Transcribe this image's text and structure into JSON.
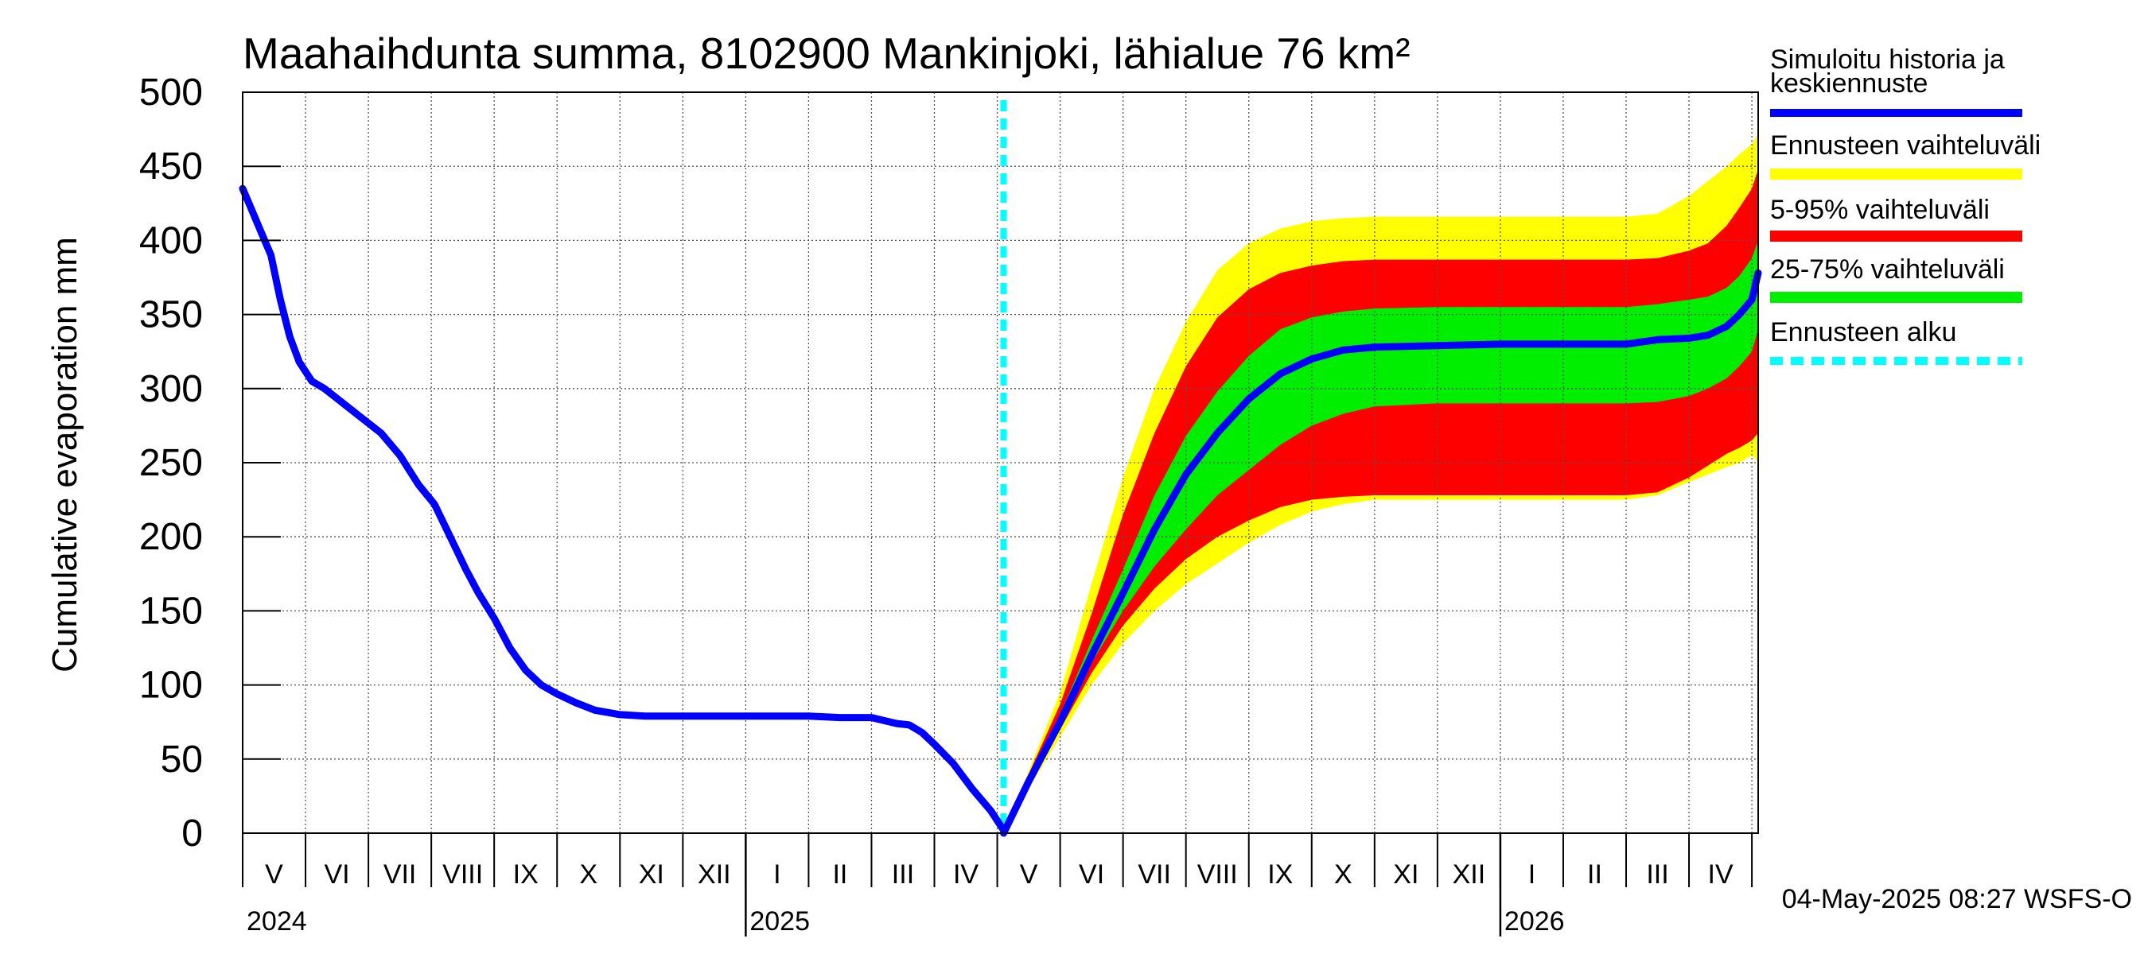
{
  "chart_data": {
    "type": "area",
    "title": "Maahaihdunta summa, 8102900 Mankinjoki, lähialue 76 km²",
    "ylabel": "Cumulative evaporation   mm",
    "xlabel": "",
    "ylim": [
      0,
      500
    ],
    "yticks": [
      0,
      50,
      100,
      150,
      200,
      250,
      300,
      350,
      400,
      450,
      500
    ],
    "grid": true,
    "x_unit": "months since 2024-04-01",
    "xlim": [
      1.0,
      25.1
    ],
    "month_labels": [
      {
        "label": "V",
        "x": 1.5
      },
      {
        "label": "VI",
        "x": 2.5
      },
      {
        "label": "VII",
        "x": 3.5
      },
      {
        "label": "VIII",
        "x": 4.5
      },
      {
        "label": "IX",
        "x": 5.5
      },
      {
        "label": "X",
        "x": 6.5
      },
      {
        "label": "XI",
        "x": 7.5
      },
      {
        "label": "XII",
        "x": 8.5
      },
      {
        "label": "I",
        "x": 9.5
      },
      {
        "label": "II",
        "x": 10.5
      },
      {
        "label": "III",
        "x": 11.5
      },
      {
        "label": "IV",
        "x": 12.5
      },
      {
        "label": "V",
        "x": 13.5
      },
      {
        "label": "VI",
        "x": 14.5
      },
      {
        "label": "VII",
        "x": 15.5
      },
      {
        "label": "VIII",
        "x": 16.5
      },
      {
        "label": "IX",
        "x": 17.5
      },
      {
        "label": "X",
        "x": 18.5
      },
      {
        "label": "XI",
        "x": 19.5
      },
      {
        "label": "XII",
        "x": 20.5
      },
      {
        "label": "I",
        "x": 21.5
      },
      {
        "label": "II",
        "x": 22.5
      },
      {
        "label": "III",
        "x": 23.5
      },
      {
        "label": "IV",
        "x": 24.5
      }
    ],
    "year_labels": [
      {
        "label": "2024",
        "x": 1.0
      },
      {
        "label": "2025",
        "x": 9.0
      },
      {
        "label": "2026",
        "x": 21.0
      }
    ],
    "year_boundaries": [
      9.0,
      21.0
    ],
    "forecast_start_x": 13.1,
    "history": {
      "x": [
        1.0,
        1.15,
        1.3,
        1.45,
        1.6,
        1.75,
        1.9,
        2.1,
        2.3,
        2.6,
        2.9,
        3.2,
        3.5,
        3.8,
        4.05,
        4.3,
        4.55,
        4.75,
        5.0,
        5.25,
        5.5,
        5.75,
        6.0,
        6.3,
        6.6,
        7.0,
        7.4,
        8.0,
        9.0,
        10.0,
        10.5,
        11.0,
        11.4,
        11.6,
        11.8,
        12.0,
        12.3,
        12.6,
        12.9,
        13.1
      ],
      "y": [
        435,
        420,
        405,
        390,
        360,
        335,
        318,
        305,
        300,
        290,
        280,
        270,
        255,
        235,
        222,
        200,
        178,
        162,
        145,
        125,
        110,
        100,
        94,
        88,
        83,
        80,
        79,
        79,
        79,
        79,
        78,
        78,
        74,
        73,
        68,
        60,
        47,
        30,
        15,
        2
      ]
    },
    "series": [
      {
        "name": "Simuloitu historia ja keskiennuste",
        "color": "#0000ff",
        "x": [
          13.1,
          13.5,
          14.0,
          14.5,
          15.0,
          15.5,
          16.0,
          16.5,
          17.0,
          17.5,
          18.0,
          18.5,
          19.0,
          20.0,
          21.0,
          22.0,
          23.0,
          23.5,
          24.0,
          24.3,
          24.6,
          24.8,
          25.0,
          25.1
        ],
        "values": [
          0,
          35,
          75,
          120,
          162,
          205,
          242,
          270,
          293,
          310,
          320,
          326,
          328,
          329,
          330,
          330,
          330,
          333,
          334,
          336,
          342,
          350,
          360,
          378
        ]
      },
      {
        "name": "Ennusteen vaihteluväli",
        "color": "#ffff00",
        "x": [
          13.1,
          13.5,
          14.0,
          14.5,
          15.0,
          15.5,
          16.0,
          16.5,
          17.0,
          17.5,
          18.0,
          18.5,
          19.0,
          20.0,
          21.0,
          22.0,
          23.0,
          23.5,
          24.0,
          24.3,
          24.6,
          24.8,
          25.0,
          25.1
        ],
        "lower": [
          0,
          30,
          65,
          100,
          128,
          150,
          168,
          182,
          196,
          208,
          217,
          222,
          225,
          225,
          225,
          225,
          225,
          228,
          237,
          242,
          247,
          250,
          255,
          250
        ],
        "upper": [
          0,
          42,
          95,
          168,
          240,
          300,
          345,
          380,
          398,
          408,
          413,
          415,
          416,
          416,
          416,
          416,
          416,
          418,
          430,
          440,
          450,
          458,
          465,
          472
        ]
      },
      {
        "name": "5-95% vaihteluväli",
        "color": "#ff0000",
        "x": [
          13.1,
          13.5,
          14.0,
          14.5,
          15.0,
          15.5,
          16.0,
          16.5,
          17.0,
          17.5,
          18.0,
          18.5,
          19.0,
          20.0,
          21.0,
          22.0,
          23.0,
          23.5,
          24.0,
          24.3,
          24.6,
          24.8,
          25.0,
          25.1
        ],
        "lower": [
          0,
          32,
          70,
          108,
          140,
          165,
          185,
          200,
          211,
          220,
          225,
          227,
          228,
          228,
          228,
          228,
          228,
          230,
          240,
          248,
          256,
          260,
          265,
          270
        ],
        "upper": [
          0,
          40,
          87,
          148,
          215,
          270,
          315,
          348,
          367,
          378,
          383,
          386,
          387,
          387,
          387,
          387,
          387,
          388,
          393,
          398,
          410,
          422,
          435,
          448
        ]
      },
      {
        "name": "25-75% vaihteluväli",
        "color": "#00ee00",
        "x": [
          13.1,
          13.5,
          14.0,
          14.5,
          15.0,
          15.5,
          16.0,
          16.5,
          17.0,
          17.5,
          18.0,
          18.5,
          19.0,
          20.0,
          21.0,
          22.0,
          23.0,
          23.5,
          24.0,
          24.3,
          24.6,
          24.8,
          25.0,
          25.1
        ],
        "lower": [
          0,
          34,
          74,
          115,
          150,
          180,
          205,
          228,
          245,
          262,
          275,
          283,
          288,
          290,
          290,
          290,
          290,
          291,
          295,
          300,
          307,
          315,
          325,
          340
        ],
        "upper": [
          0,
          37,
          80,
          130,
          178,
          228,
          268,
          298,
          322,
          340,
          348,
          352,
          354,
          355,
          355,
          355,
          355,
          357,
          360,
          362,
          368,
          376,
          388,
          400
        ]
      },
      {
        "name": "Ennusteen alku",
        "color": "#00ffff",
        "style": "dashed"
      }
    ],
    "legend_position": "right",
    "timestamp": "04-May-2025 08:27 WSFS-O"
  },
  "legend": {
    "item1_line1": "Simuloitu historia ja",
    "item1_line2": "keskiennuste",
    "item2": "Ennusteen vaihteluväli",
    "item3": "5-95% vaihteluväli",
    "item4": "25-75% vaihteluväli",
    "item5": "Ennusteen alku"
  }
}
